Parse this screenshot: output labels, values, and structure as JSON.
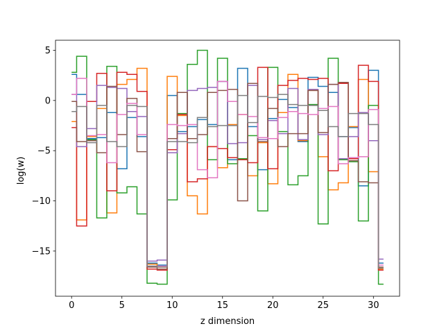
{
  "chart_data": {
    "type": "line",
    "drawstyle": "steps-mid",
    "xlabel": "z dimension",
    "ylabel": "log(w)",
    "xlim": [
      -1.6,
      32.6
    ],
    "ylim": [
      -19.5,
      6.0
    ],
    "xticks": [
      0,
      5,
      10,
      15,
      20,
      25,
      30
    ],
    "yticks": [
      5,
      0,
      -5,
      -10,
      -15
    ],
    "x": [
      0,
      1,
      2,
      3,
      4,
      5,
      6,
      7,
      8,
      9,
      10,
      11,
      12,
      13,
      14,
      15,
      16,
      17,
      18,
      19,
      20,
      21,
      22,
      23,
      24,
      25,
      26,
      27,
      28,
      29,
      30,
      31
    ],
    "series": [
      {
        "color": "#1f77b4",
        "values": [
          2.6,
          0.6,
          -3.8,
          -3.7,
          -1.2,
          -6.8,
          -1.7,
          -3.6,
          -16.2,
          -16.4,
          0.5,
          -3.1,
          -2.6,
          -1.9,
          -2.4,
          1.9,
          -5.9,
          3.2,
          -2.6,
          -6.9,
          -1.8,
          0.1,
          -0.7,
          -4.1,
          2.3,
          1.4,
          0.8,
          -3.6,
          -2.7,
          -8.5,
          3.0,
          -16.2
        ]
      },
      {
        "color": "#ff7f0e",
        "values": [
          -2.1,
          -11.9,
          -3.6,
          -0.8,
          -11.2,
          1.6,
          2.1,
          3.2,
          -16.3,
          -16.6,
          2.4,
          -1.5,
          -9.5,
          -11.3,
          -4.6,
          -6.7,
          -2.4,
          -1.4,
          -7.5,
          -4.2,
          -8.3,
          -1.2,
          2.6,
          -4.0,
          1.0,
          -5.6,
          -8.9,
          -8.2,
          -2.6,
          2.1,
          -7.1,
          -16.8
        ]
      },
      {
        "color": "#2ca02c",
        "values": [
          2.8,
          4.4,
          -3.9,
          -11.7,
          3.4,
          -9.2,
          -8.6,
          -11.3,
          -18.2,
          -18.3,
          -9.9,
          -1.3,
          3.6,
          5.0,
          -5.9,
          4.2,
          -6.3,
          -5.8,
          -3.5,
          -11.0,
          3.3,
          -3.1,
          -8.4,
          -7.5,
          -0.4,
          -12.3,
          4.2,
          -5.9,
          -6.1,
          -12.0,
          -0.5,
          -18.3
        ]
      },
      {
        "color": "#d62728",
        "values": [
          -2.7,
          -12.5,
          -0.1,
          2.7,
          -9.0,
          2.8,
          2.6,
          0.9,
          -16.8,
          -16.9,
          -4.9,
          -1.4,
          -8.1,
          -7.8,
          -4.6,
          -4.8,
          -5.7,
          -5.9,
          -6.2,
          3.3,
          -6.8,
          1.5,
          2.0,
          2.2,
          2.1,
          2.2,
          -7.0,
          1.7,
          -5.8,
          3.5,
          1.9,
          -16.9
        ]
      },
      {
        "color": "#9467bd",
        "values": [
          0.6,
          -4.6,
          -2.8,
          1.5,
          1.3,
          1.2,
          -1.1,
          -1.6,
          -16.0,
          -15.9,
          -5.2,
          -3.3,
          1.0,
          1.2,
          1.3,
          1.9,
          -4.3,
          -4.2,
          1.5,
          -3.9,
          -2.0,
          -3.3,
          1.2,
          -3.9,
          1.1,
          -3.4,
          1.6,
          -5.8,
          -3.6,
          -1.2,
          -4.0,
          -15.8
        ]
      },
      {
        "color": "#8c564b",
        "values": [
          -0.1,
          -4.1,
          -4.0,
          -5.2,
          1.4,
          -3.4,
          0.2,
          -5.1,
          -16.6,
          -16.8,
          -3.8,
          0.8,
          -3.8,
          -3.4,
          0.8,
          1.0,
          1.1,
          -10.0,
          1.7,
          -4.1,
          -0.8,
          -4.6,
          -3.3,
          -3.3,
          1.0,
          -3.2,
          1.6,
          1.8,
          -6.0,
          -8.1,
          -8.2,
          -16.6
        ]
      },
      {
        "color": "#e377c2",
        "values": [
          0.6,
          2.2,
          -3.5,
          -3.4,
          -6.2,
          -1.4,
          -0.3,
          -3.4,
          -16.5,
          -16.5,
          -2.4,
          -2.5,
          -2.4,
          -6.9,
          -7.7,
          1.9,
          -0.1,
          -1.4,
          -1.6,
          -3.7,
          -3.8,
          -1.7,
          -1.1,
          -1.3,
          -1.4,
          -0.8,
          -0.6,
          -6.3,
          -5.7,
          -5.6,
          -0.9,
          -16.4
        ]
      },
      {
        "color": "#7f7f7f",
        "values": [
          -1.1,
          -0.6,
          -4.2,
          -0.5,
          -4.1,
          -4.6,
          -0.5,
          -0.6,
          -16.5,
          -16.6,
          -4.1,
          -4.1,
          -4.2,
          -1.7,
          -2.6,
          -2.5,
          -2.5,
          0.5,
          -2.2,
          0.4,
          0.3,
          0.6,
          -0.4,
          -0.5,
          -0.5,
          -1.0,
          -2.6,
          -3.6,
          -1.3,
          -1.3,
          -2.4,
          -16.7
        ]
      }
    ]
  }
}
